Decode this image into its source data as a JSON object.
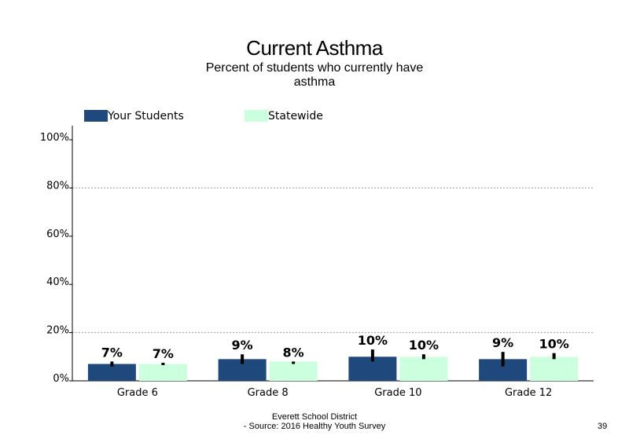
{
  "chart_data": {
    "type": "bar",
    "title": "Current Asthma",
    "subtitle_lines": [
      "Percent of students who currently have",
      "asthma"
    ],
    "categories": [
      "Grade 6",
      "Grade 8",
      "Grade 10",
      "Grade 12"
    ],
    "series": [
      {
        "name": "Your Students",
        "color": "#1f497d",
        "values": [
          7,
          9,
          10,
          9
        ],
        "labels": [
          "7%",
          "9%",
          "10%",
          "9%"
        ],
        "error_low": [
          6,
          7,
          8,
          6
        ],
        "error_high": [
          8,
          11,
          13,
          12
        ]
      },
      {
        "name": "Statewide",
        "color": "#ccffdd",
        "values": [
          7,
          8,
          10,
          10
        ],
        "labels": [
          "7%",
          "8%",
          "10%",
          "10%"
        ],
        "error_low": [
          6.5,
          7,
          9,
          9
        ],
        "error_high": [
          7.5,
          8,
          11,
          11.5
        ]
      }
    ],
    "y_ticks": [
      0,
      20,
      40,
      60,
      80,
      100
    ],
    "y_tick_labels": [
      "0%",
      "20%",
      "40%",
      "60%",
      "80%",
      "100%"
    ],
    "ylim": [
      0,
      100
    ],
    "xlabel": "",
    "ylabel": "",
    "grid": "dotted horizontal at 20% and 80%",
    "legend_position": "top-left"
  },
  "footer": {
    "line1": "Everett School District",
    "line2": "- Source: 2016 Healthy  Youth Survey",
    "page_number": "39"
  }
}
